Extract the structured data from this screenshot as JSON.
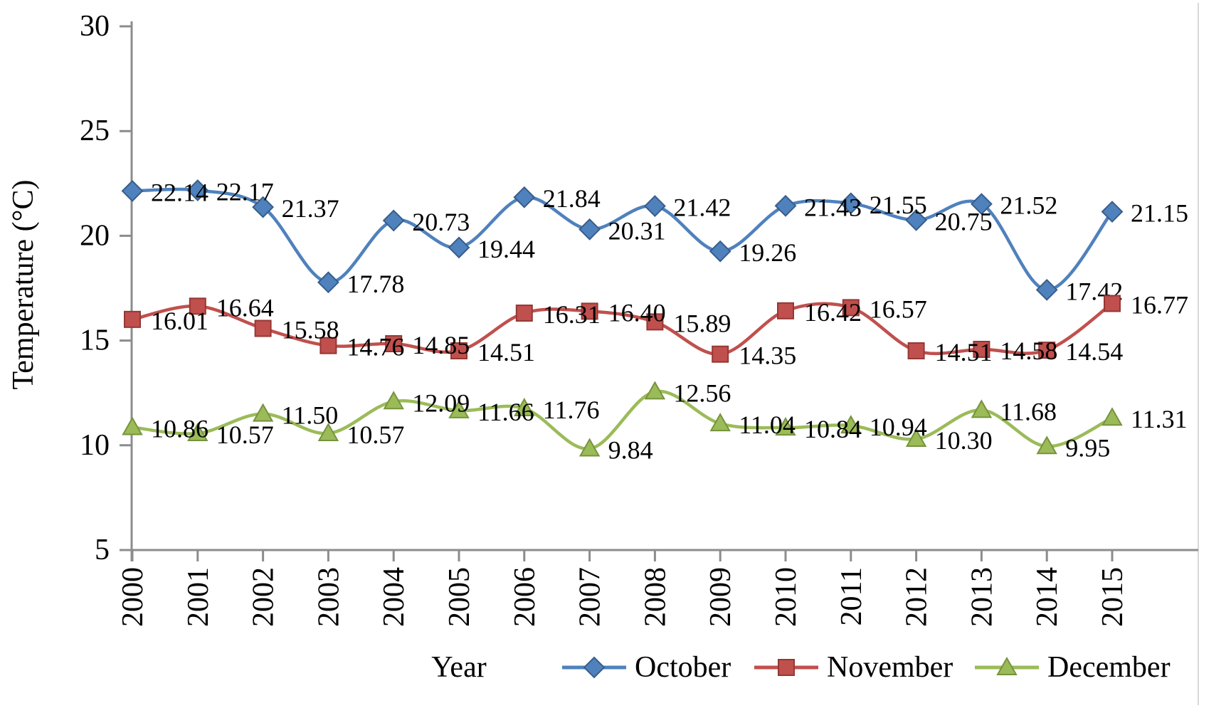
{
  "chart_data": {
    "type": "line",
    "title": "",
    "xlabel": "Year",
    "ylabel": "Temperature (°C)",
    "categories": [
      "2000",
      "2001",
      "2002",
      "2003",
      "2004",
      "2005",
      "2006",
      "2007",
      "2008",
      "2009",
      "2010",
      "2011",
      "2012",
      "2013",
      "2014",
      "2015"
    ],
    "ylim": [
      5,
      30
    ],
    "yticks": [
      30,
      25,
      20,
      15,
      10,
      5
    ],
    "grid": false,
    "smooth_lines": true,
    "data_labels_position": "right",
    "data_labels_decimals": 2,
    "legend_position": "bottom",
    "series": [
      {
        "name": "October",
        "marker": "diamond",
        "color": "#4F81BD",
        "marker_stroke": "#385D8A",
        "values": [
          22.14,
          22.17,
          21.37,
          17.78,
          20.73,
          19.44,
          21.84,
          20.31,
          21.42,
          19.26,
          21.43,
          21.55,
          20.75,
          21.52,
          17.42,
          21.15
        ]
      },
      {
        "name": "November",
        "marker": "square",
        "color": "#C0504D",
        "marker_stroke": "#953735",
        "values": [
          16.01,
          16.64,
          15.58,
          14.76,
          14.85,
          14.51,
          16.31,
          16.4,
          15.89,
          14.35,
          16.42,
          16.57,
          14.51,
          14.58,
          14.54,
          16.77
        ]
      },
      {
        "name": "December",
        "marker": "triangle",
        "color": "#9BBB59",
        "marker_stroke": "#76933C",
        "values": [
          10.86,
          10.57,
          11.5,
          10.57,
          12.09,
          11.66,
          11.76,
          9.84,
          12.56,
          11.04,
          10.84,
          10.94,
          10.3,
          11.68,
          9.95,
          11.31
        ]
      }
    ]
  },
  "style": {
    "axis_color": "#8C8C8C",
    "plot_border_color": "#D9D9D9",
    "text_color": "#000000",
    "background": "#FFFFFF"
  }
}
